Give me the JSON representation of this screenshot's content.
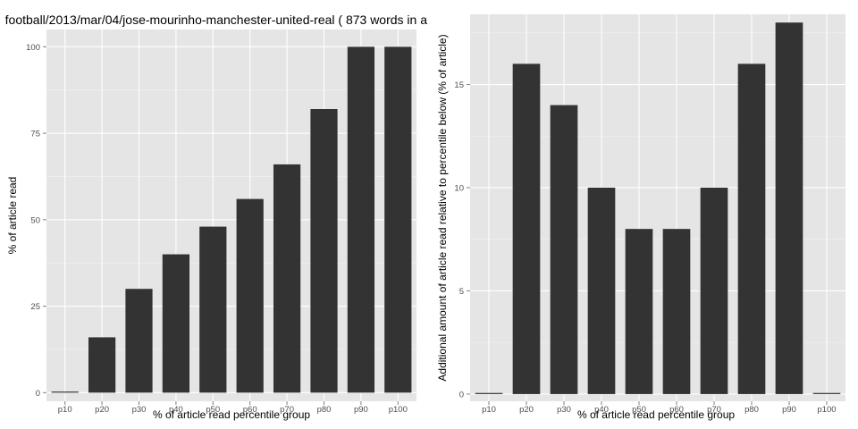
{
  "title": "football/2013/mar/04/jose-mourinho-manchester-united-real ( 873 words in a",
  "colors": {
    "panel_bg": "#e5e5e5",
    "grid_major": "#ffffff",
    "grid_minor": "#f2f2f2",
    "bar_fill": "#333333",
    "tick_text": "#4d4d4d"
  },
  "chart_data": [
    {
      "type": "bar",
      "xlabel": "% of article read percentile group",
      "ylabel": "% of article read",
      "categories": [
        "p10",
        "p20",
        "p30",
        "p40",
        "p50",
        "p60",
        "p70",
        "p80",
        "p90",
        "p100"
      ],
      "values": [
        0,
        16,
        30,
        40,
        48,
        56,
        66,
        82,
        100,
        100
      ],
      "ylim": [
        -2.5,
        105
      ],
      "yticks": [
        0,
        25,
        50,
        75,
        100
      ],
      "grid": true
    },
    {
      "type": "bar",
      "xlabel": "% of article read percentile group",
      "ylabel": "Additional amount of article read relative to percentile below (% of article)",
      "categories": [
        "p10",
        "p20",
        "p30",
        "p40",
        "p50",
        "p60",
        "p70",
        "p80",
        "p90",
        "p100"
      ],
      "values": [
        0,
        16,
        14,
        10,
        8,
        8,
        10,
        16,
        18,
        0
      ],
      "ylim": [
        -0.35,
        18.4
      ],
      "yticks": [
        0,
        5,
        10,
        15
      ],
      "grid": true
    }
  ]
}
